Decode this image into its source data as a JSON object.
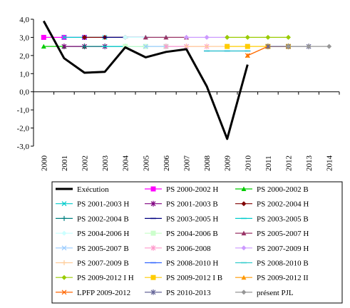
{
  "chart_data": {
    "type": "line",
    "title": "",
    "xlabel": "",
    "ylabel": "",
    "ylim": [
      -3,
      4
    ],
    "yticks": [
      "4,0",
      "3,0",
      "2,0",
      "1,0",
      "0,0",
      "-1,0",
      "-2,0",
      "-3,0"
    ],
    "ytick_values": [
      4,
      3,
      2,
      1,
      0,
      -1,
      -2,
      -3
    ],
    "categories": [
      "2000",
      "2001",
      "2002",
      "2003",
      "2004",
      "2005",
      "2006",
      "2007",
      "2008",
      "2009",
      "2010",
      "2011",
      "2012",
      "2013",
      "2014"
    ],
    "grid": false,
    "legend_position": "bottom",
    "legend_columns": 3,
    "series": [
      {
        "name": "Exécution",
        "color": "#000000",
        "marker": "none",
        "values": [
          3.9,
          1.85,
          1.05,
          1.1,
          2.45,
          1.9,
          2.2,
          2.35,
          0.3,
          -2.6,
          1.5,
          null,
          null,
          null,
          null
        ]
      },
      {
        "name": "PS 2000-2002 H",
        "color": "#ff00ff",
        "marker": "square",
        "values": [
          3.0,
          3.0,
          3.0,
          null,
          null,
          null,
          null,
          null,
          null,
          null,
          null,
          null,
          null,
          null,
          null
        ]
      },
      {
        "name": "PS 2000-2002 B",
        "color": "#00cc00",
        "marker": "triangle",
        "values": [
          2.5,
          2.5,
          2.5,
          null,
          null,
          null,
          null,
          null,
          null,
          null,
          null,
          null,
          null,
          null,
          null
        ]
      },
      {
        "name": "PS 2001-2003 H",
        "color": "#00cccc",
        "marker": "x",
        "values": [
          null,
          3.0,
          3.0,
          3.0,
          null,
          null,
          null,
          null,
          null,
          null,
          null,
          null,
          null,
          null,
          null
        ]
      },
      {
        "name": "PS 2001-2003 B",
        "color": "#800080",
        "marker": "star",
        "values": [
          null,
          2.5,
          2.5,
          2.5,
          null,
          null,
          null,
          null,
          null,
          null,
          null,
          null,
          null,
          null,
          null
        ]
      },
      {
        "name": "PS 2002-2004 H",
        "color": "#800000",
        "marker": "diamond",
        "values": [
          null,
          null,
          3.0,
          3.0,
          3.0,
          null,
          null,
          null,
          null,
          null,
          null,
          null,
          null,
          null,
          null
        ]
      },
      {
        "name": "PS 2002-2004 B",
        "color": "#008080",
        "marker": "plus",
        "values": [
          null,
          null,
          2.5,
          2.5,
          2.5,
          null,
          null,
          null,
          null,
          null,
          null,
          null,
          null,
          null,
          null
        ]
      },
      {
        "name": "PS 2003-2005 H",
        "color": "#000080",
        "marker": "dash",
        "values": [
          null,
          null,
          null,
          3.0,
          3.0,
          3.0,
          null,
          null,
          null,
          null,
          null,
          null,
          null,
          null,
          null
        ]
      },
      {
        "name": "PS 2003-2005 B",
        "color": "#00cccc",
        "marker": "dash",
        "values": [
          null,
          null,
          null,
          2.5,
          2.5,
          2.5,
          null,
          null,
          null,
          null,
          null,
          null,
          null,
          null,
          null
        ]
      },
      {
        "name": "PS 2004-2006 H",
        "color": "#ccffff",
        "marker": "diamond",
        "values": [
          null,
          null,
          null,
          null,
          3.0,
          3.0,
          3.0,
          null,
          null,
          null,
          null,
          null,
          null,
          null,
          null
        ]
      },
      {
        "name": "PS 2004-2006 B",
        "color": "#ccffcc",
        "marker": "square",
        "values": [
          null,
          null,
          null,
          null,
          2.5,
          2.5,
          2.5,
          null,
          null,
          null,
          null,
          null,
          null,
          null,
          null
        ]
      },
      {
        "name": "PS 2005-2007 H",
        "color": "#993366",
        "marker": "triangle",
        "values": [
          null,
          null,
          null,
          null,
          null,
          3.0,
          3.0,
          3.0,
          null,
          null,
          null,
          null,
          null,
          null,
          null
        ]
      },
      {
        "name": "PS 2005-2007 B",
        "color": "#99ccff",
        "marker": "x",
        "values": [
          null,
          null,
          null,
          null,
          null,
          2.5,
          2.5,
          2.5,
          null,
          null,
          null,
          null,
          null,
          null,
          null
        ]
      },
      {
        "name": "PS 2006-2008",
        "color": "#ff99cc",
        "marker": "star",
        "values": [
          null,
          null,
          null,
          null,
          null,
          null,
          2.5,
          2.5,
          2.5,
          null,
          null,
          null,
          null,
          null,
          null
        ]
      },
      {
        "name": "PS 2007-2009 H",
        "color": "#cc99ff",
        "marker": "diamond",
        "values": [
          null,
          null,
          null,
          null,
          null,
          null,
          null,
          3.0,
          3.0,
          3.0,
          null,
          null,
          null,
          null,
          null
        ]
      },
      {
        "name": "PS 2007-2009 B",
        "color": "#ffcc99",
        "marker": "plus",
        "values": [
          null,
          null,
          null,
          null,
          null,
          null,
          null,
          2.5,
          2.5,
          2.5,
          null,
          null,
          null,
          null,
          null
        ]
      },
      {
        "name": "PS 2008-2010 H",
        "color": "#3366ff",
        "marker": "dash",
        "values": [
          null,
          null,
          null,
          null,
          null,
          null,
          null,
          null,
          2.25,
          2.25,
          2.25,
          null,
          null,
          null,
          null
        ]
      },
      {
        "name": "PS 2008-2010 B",
        "color": "#33cccc",
        "marker": "dash",
        "values": [
          null,
          null,
          null,
          null,
          null,
          null,
          null,
          null,
          2.25,
          2.25,
          2.25,
          null,
          null,
          null,
          null
        ]
      },
      {
        "name": "PS 2009-2012 I H",
        "color": "#99cc00",
        "marker": "diamond",
        "values": [
          null,
          null,
          null,
          null,
          null,
          null,
          null,
          null,
          null,
          3.0,
          3.0,
          3.0,
          3.0,
          null,
          null
        ]
      },
      {
        "name": "PS 2009-2012 I B",
        "color": "#ffcc00",
        "marker": "square",
        "values": [
          null,
          null,
          null,
          null,
          null,
          null,
          null,
          null,
          null,
          2.5,
          2.5,
          2.5,
          2.5,
          null,
          null
        ]
      },
      {
        "name": "PS 2009-2012 II",
        "color": "#ff9900",
        "marker": "triangle",
        "values": [
          null,
          null,
          null,
          null,
          null,
          null,
          null,
          null,
          null,
          null,
          2.0,
          2.5,
          2.5,
          null,
          null
        ]
      },
      {
        "name": "LPFP 2009-2012",
        "color": "#ff6600",
        "marker": "x",
        "values": [
          null,
          null,
          null,
          null,
          null,
          null,
          null,
          null,
          null,
          null,
          2.0,
          2.5,
          2.5,
          null,
          null
        ]
      },
      {
        "name": "PS 2010-2013",
        "color": "#666699",
        "marker": "star",
        "values": [
          null,
          null,
          null,
          null,
          null,
          null,
          null,
          null,
          null,
          null,
          null,
          2.5,
          2.5,
          2.5,
          null
        ]
      },
      {
        "name": "présent PJL",
        "color": "#969696",
        "marker": "diamond",
        "values": [
          null,
          null,
          null,
          null,
          null,
          null,
          null,
          null,
          null,
          null,
          null,
          null,
          2.5,
          2.5,
          2.5
        ]
      }
    ]
  }
}
